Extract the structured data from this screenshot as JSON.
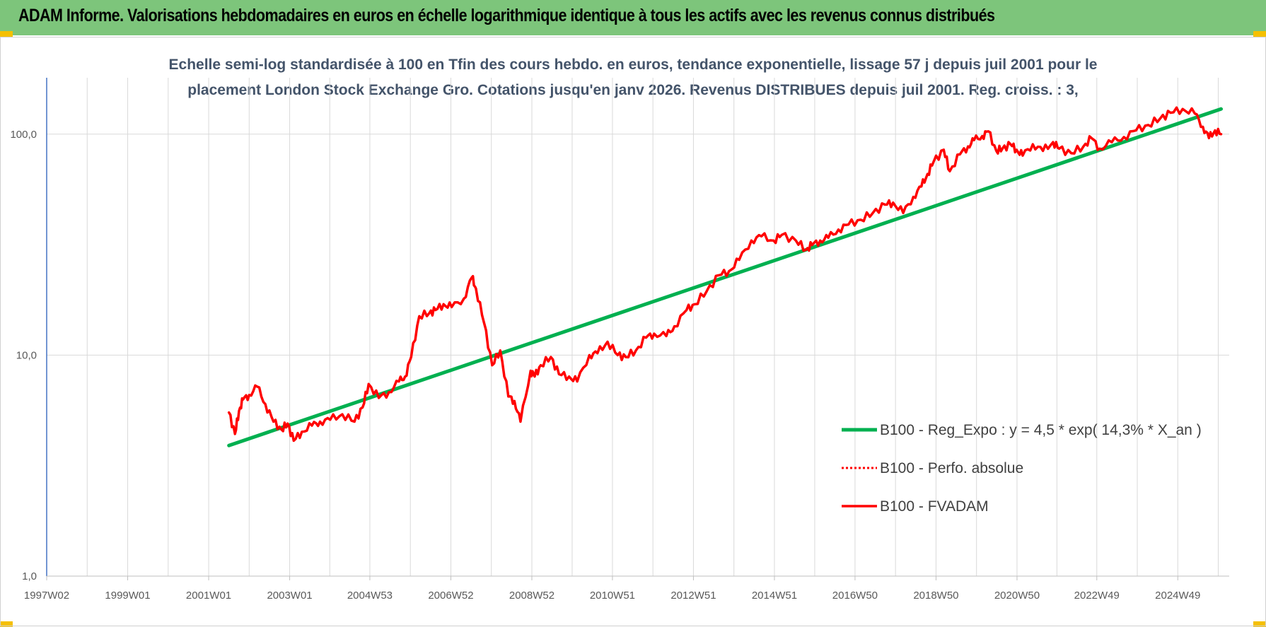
{
  "header": {
    "title": "ADAM Informe. Valorisations hebdomadaires en euros en échelle logarithmique identique à tous les actifs avec les revenus connus distribués"
  },
  "colors": {
    "header_bg": "#7dc57b",
    "regression": "#00b050",
    "fvadam": "#ff0000",
    "perfo": "#ff0000",
    "grid": "#d9d9d9",
    "axis": "#4472c4"
  },
  "chart_data": {
    "type": "line",
    "subtitle_lines": [
      "Echelle semi-log standardisée à 100 en Tfin des cours hebdo. en euros, tendance exponentielle, lissage 57 j depuis juil 2001 pour le",
      "placement London Stock Exchange Gro. Cotations jusqu'en janv 2026. Revenus DISTRIBUES depuis juil 2001. Reg. croiss. : 3,"
    ],
    "y_scale": "log",
    "ylim": [
      1,
      180
    ],
    "y_ticks": [
      1,
      10,
      100
    ],
    "y_tick_labels": [
      "1,0",
      "10,0",
      "100,0"
    ],
    "xlim": [
      1997.0,
      2026.2
    ],
    "x_ticks": [
      1997.0,
      1999.0,
      2001.0,
      2003.0,
      2004.98,
      2006.98,
      2008.98,
      2010.97,
      2012.97,
      2014.97,
      2016.96,
      2018.96,
      2020.96,
      2022.93,
      2024.93
    ],
    "x_tick_labels": [
      "1997W02",
      "1999W01",
      "2001W01",
      "2003W01",
      "2004W53",
      "2006W52",
      "2008W52",
      "2010W51",
      "2012W51",
      "2014W51",
      "2016W50",
      "2018W50",
      "2020W50",
      "2022W49",
      "2024W49"
    ],
    "grid": true,
    "legend_position": "right",
    "series": [
      {
        "name": "B100 - Reg_Expo : y = 4,5 * exp( 14,3% *  X_an )",
        "style": "solid-green",
        "x": [
          2001.5,
          2026.0
        ],
        "y": [
          3.9,
          130
        ]
      },
      {
        "name": "B100 - Perfo. absolue",
        "style": "dotted-red",
        "x": [],
        "y": []
      },
      {
        "name": "B100 - FVADAM",
        "style": "solid-red",
        "x": [
          2001.5,
          2001.65,
          2001.75,
          2001.85,
          2002.0,
          2002.2,
          2002.4,
          2002.6,
          2002.8,
          2002.95,
          2003.1,
          2003.3,
          2003.55,
          2003.75,
          2004.0,
          2004.3,
          2004.6,
          2004.8,
          2004.95,
          2005.2,
          2005.45,
          2005.7,
          2005.85,
          2006.0,
          2006.2,
          2006.45,
          2006.6,
          2006.8,
          2007.0,
          2007.3,
          2007.5,
          2007.6,
          2007.8,
          2008.0,
          2008.2,
          2008.4,
          2008.55,
          2008.7,
          2008.95,
          2009.05,
          2009.2,
          2009.45,
          2009.65,
          2009.9,
          2010.1,
          2010.4,
          2010.6,
          2010.85,
          2011.1,
          2011.3,
          2011.55,
          2011.8,
          2012.0,
          2012.3,
          2012.5,
          2012.8,
          2013.0,
          2013.3,
          2013.6,
          2013.85,
          2014.1,
          2014.4,
          2014.65,
          2014.95,
          2015.15,
          2015.5,
          2015.75,
          2015.9,
          2016.1,
          2016.3,
          2016.55,
          2016.8,
          2017.1,
          2017.4,
          2017.7,
          2017.9,
          2018.15,
          2018.4,
          2018.6,
          2018.75,
          2018.9,
          2019.15,
          2019.3,
          2019.55,
          2019.75,
          2019.9,
          2020.1,
          2020.25,
          2020.45,
          2020.6,
          2020.8,
          2020.95,
          2021.1,
          2021.35,
          2021.6,
          2021.85,
          2022.0,
          2022.3,
          2022.6,
          2022.8,
          2023.0,
          2023.3,
          2023.6,
          2023.9,
          2024.2,
          2024.5,
          2024.75,
          2025.05,
          2025.35,
          2025.55,
          2025.7,
          2025.85,
          2026.0
        ],
        "y": [
          5.5,
          4.4,
          5.6,
          6.3,
          6.6,
          7.2,
          6.0,
          5.0,
          4.6,
          4.9,
          4.1,
          4.5,
          4.8,
          5.0,
          5.1,
          5.4,
          5.0,
          5.8,
          7.4,
          6.4,
          6.8,
          7.6,
          8.0,
          9.8,
          15.0,
          15.5,
          16.0,
          17.0,
          16.5,
          18.0,
          22.5,
          20.0,
          14.0,
          9.0,
          10.5,
          6.5,
          6.2,
          5.0,
          8.5,
          8.0,
          9.0,
          9.8,
          8.2,
          8.0,
          7.6,
          10.0,
          10.2,
          11.5,
          10.0,
          9.8,
          10.5,
          12.0,
          12.5,
          12.2,
          13.5,
          16.0,
          17.0,
          19.5,
          23.0,
          24.0,
          27.0,
          33.0,
          34.5,
          33.0,
          35.0,
          33.0,
          30.0,
          31.5,
          33.0,
          34.0,
          37.0,
          39.0,
          41.0,
          44.0,
          48.0,
          49.0,
          44.0,
          52.0,
          58.0,
          66.0,
          75.0,
          85.0,
          68.0,
          81.0,
          88.0,
          94.0,
          98.0,
          103.0,
          84.0,
          86.0,
          90.0,
          85.0,
          80.0,
          90.0,
          84.0,
          92.0,
          86.0,
          82.0,
          88.0,
          96.0,
          86.0,
          92.0,
          97.0,
          104.0,
          110.0,
          118.0,
          125.0,
          130.0,
          124.0,
          108.0,
          96.0,
          104.0,
          100.0
        ]
      }
    ]
  }
}
